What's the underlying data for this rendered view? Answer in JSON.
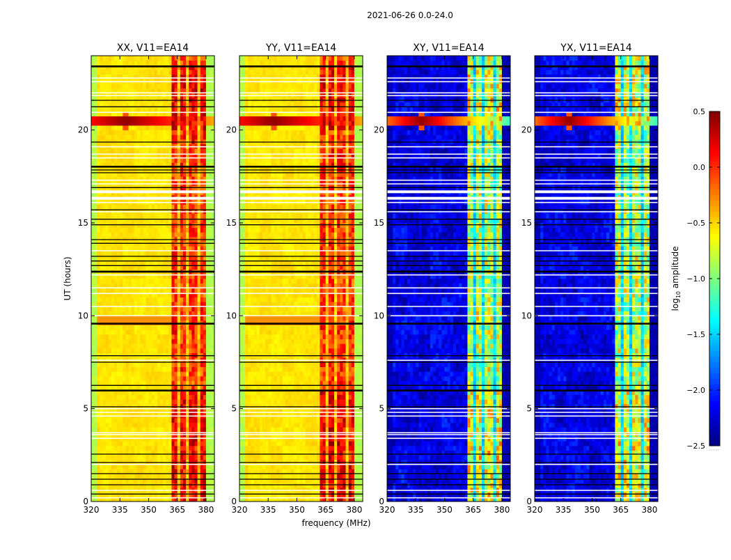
{
  "chart_data": {
    "type": "heatmap",
    "title": "2021-06-26 0.0-24.0",
    "xlabel": "frequency (MHz)",
    "ylabel": "UT (hours)",
    "xlim": [
      320,
      384.4
    ],
    "ylim": [
      0,
      24
    ],
    "xticks": [
      320,
      335,
      350,
      365,
      380
    ],
    "yticks": [
      0,
      5,
      10,
      15,
      20
    ],
    "panels": [
      {
        "title": "XX, V11=EA14",
        "kind": "parallel"
      },
      {
        "title": "YY, V11=EA14",
        "kind": "parallel"
      },
      {
        "title": "XY, V11=EA14",
        "kind": "cross"
      },
      {
        "title": "YX, V11=EA14",
        "kind": "cross"
      }
    ],
    "colorbar": {
      "label_prefix": "log",
      "label_sub": "10",
      "label_suffix": " amplitude",
      "colormap": "jet",
      "range": [
        -2.5,
        0.5
      ],
      "ticks": [
        0.5,
        0.0,
        -0.5,
        -1.0,
        -1.5,
        -2.0,
        -2.5
      ],
      "tick_labels": [
        "0.5",
        "0.0",
        "−0.5",
        "−1.0",
        "−1.5",
        "−2.0",
        "−2.5"
      ]
    },
    "levels_log10_amplitude": {
      "parallel": {
        "background": -0.55,
        "band_edges_low": -0.85,
        "band": -0.1,
        "band_gaps": -0.45,
        "high_amp_interval_9_5_to_9_8h": -0.3
      },
      "cross": {
        "background": -2.2,
        "band_edges_low": -2.35,
        "band": -0.9,
        "band_gaps": -1.5
      }
    },
    "band_mhz": [
      361.5,
      380
    ],
    "band_gap_mhz": [
      365.5,
      370.5,
      375.6
    ],
    "rfi_spike": {
      "freq_mhz": 338,
      "hour": 20.5,
      "level": 0.45
    },
    "flagged_hours_black": [
      0.4,
      0.9,
      1.2,
      1.5,
      2.1,
      2.55,
      5.1,
      5.95,
      6.0,
      6.25,
      7.5,
      7.85,
      9.55,
      9.6,
      12.35,
      12.4,
      12.7,
      12.95,
      13.2,
      13.9,
      14.1,
      14.9,
      15.2,
      15.7,
      16.9,
      17.7,
      17.85,
      18.0,
      18.05,
      19.35,
      21.25,
      21.6,
      23.4,
      23.45
    ],
    "flagged_hours_white": [
      0.2,
      0.6,
      2.0,
      3.4,
      3.6,
      3.7,
      4.6,
      4.8,
      5.0,
      7.6,
      10.0,
      10.5,
      11.2,
      11.5,
      12.2,
      13.5,
      15.6,
      16.1,
      16.65,
      17.1,
      17.3,
      18.5,
      18.7,
      19.1,
      20.95,
      21.85,
      22.0,
      22.6,
      22.8
    ],
    "flagged_bands_white": [
      [
        16.25,
        16.4
      ],
      [
        16.6,
        16.75
      ]
    ]
  }
}
